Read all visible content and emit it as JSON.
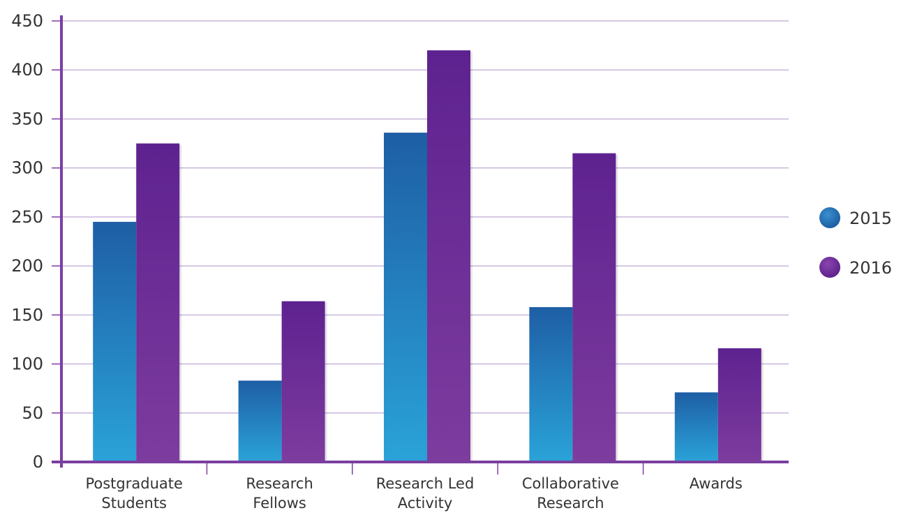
{
  "chart_data": {
    "type": "bar",
    "title": "",
    "xlabel": "",
    "ylabel": "",
    "categories": [
      [
        "Postgraduate",
        "Students"
      ],
      [
        "Research",
        "Fellows"
      ],
      [
        "Research Led",
        "Activity"
      ],
      [
        "Collaborative",
        "Research"
      ],
      [
        "Awards"
      ]
    ],
    "series": [
      {
        "name": "2015",
        "values": [
          245,
          83,
          336,
          158,
          71
        ],
        "color": "#1f6db0"
      },
      {
        "name": "2016",
        "values": [
          325,
          164,
          420,
          315,
          116
        ],
        "color": "#6a2a96"
      }
    ],
    "ylim": [
      0,
      450
    ],
    "yticks": [
      0,
      50,
      100,
      150,
      200,
      250,
      300,
      350,
      400,
      450
    ],
    "grid": true,
    "legend": "right",
    "axis_color": "#7b3fa0",
    "grid_color": "#c8b6dc"
  }
}
